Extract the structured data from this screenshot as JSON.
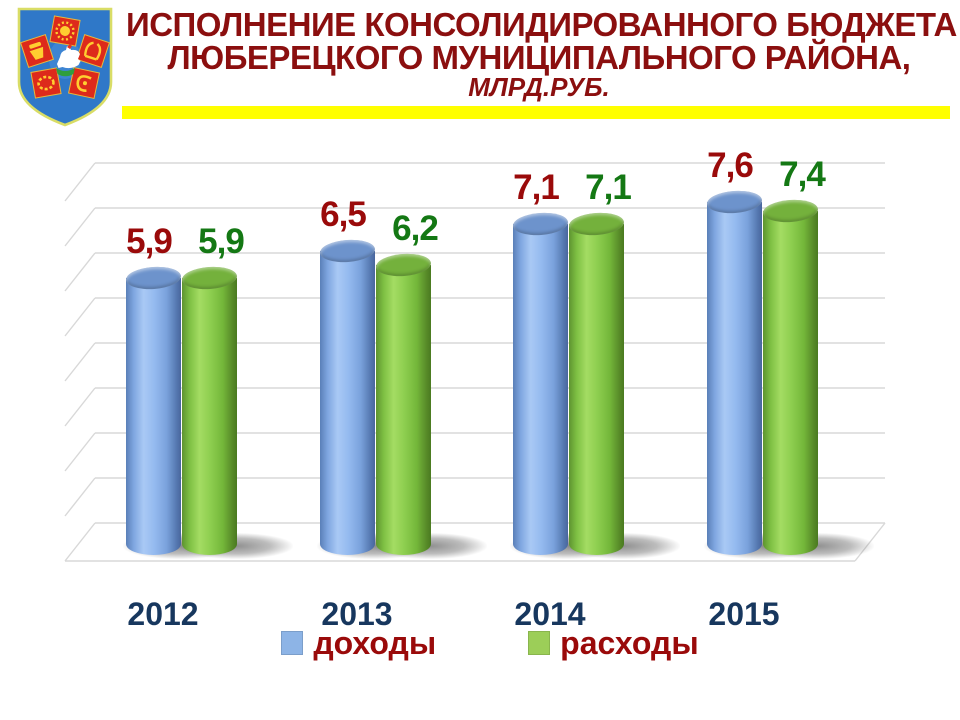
{
  "slide": {
    "background": "#FFFFFF"
  },
  "header": {
    "logo": "lyubertsy-district-coat-of-arms",
    "title_line1": "ИСПОЛНЕНИЕ КОНСОЛИДИРОВАННОГО БЮДЖЕТА",
    "title_line2": "ЛЮБЕРЕЦКОГО МУНИЦИПАЛЬНОГО РАЙОНА,",
    "title_line3": "МЛРД.РУБ.",
    "title_color": "#8B0F0F",
    "underline_color": "#FFFF00"
  },
  "chart_data": {
    "type": "bar",
    "style": "3d-cylinder",
    "title": "Исполнение консолидированного бюджета Люберецкого муниципального района, млрд. руб.",
    "categories": [
      "2012",
      "2013",
      "2014",
      "2015"
    ],
    "series": [
      {
        "name": "доходы",
        "slug": "dohody",
        "values": [
          5.9,
          6.5,
          7.1,
          7.6
        ],
        "labels": [
          "5,9",
          "6,5",
          "7,1",
          "7,6"
        ],
        "bar_color": "#85ADE8",
        "swatch_color": "#8DB4E6",
        "label_color": "#9A0A0A"
      },
      {
        "name": "расходы",
        "slug": "rashody",
        "values": [
          5.9,
          6.2,
          7.1,
          7.4
        ],
        "labels": [
          "5,9",
          "6,2",
          "7,1",
          "7,4"
        ],
        "bar_color": "#7CC142",
        "swatch_color": "#9CCE58",
        "label_color": "#147814"
      }
    ],
    "ylim": [
      0,
      8
    ],
    "gridline_step": 1,
    "grid": true,
    "grid_color": "#D8D8D8",
    "category_color": "#17375E",
    "legend_position": "bottom",
    "legend_label_color": "#9A0A0A"
  }
}
